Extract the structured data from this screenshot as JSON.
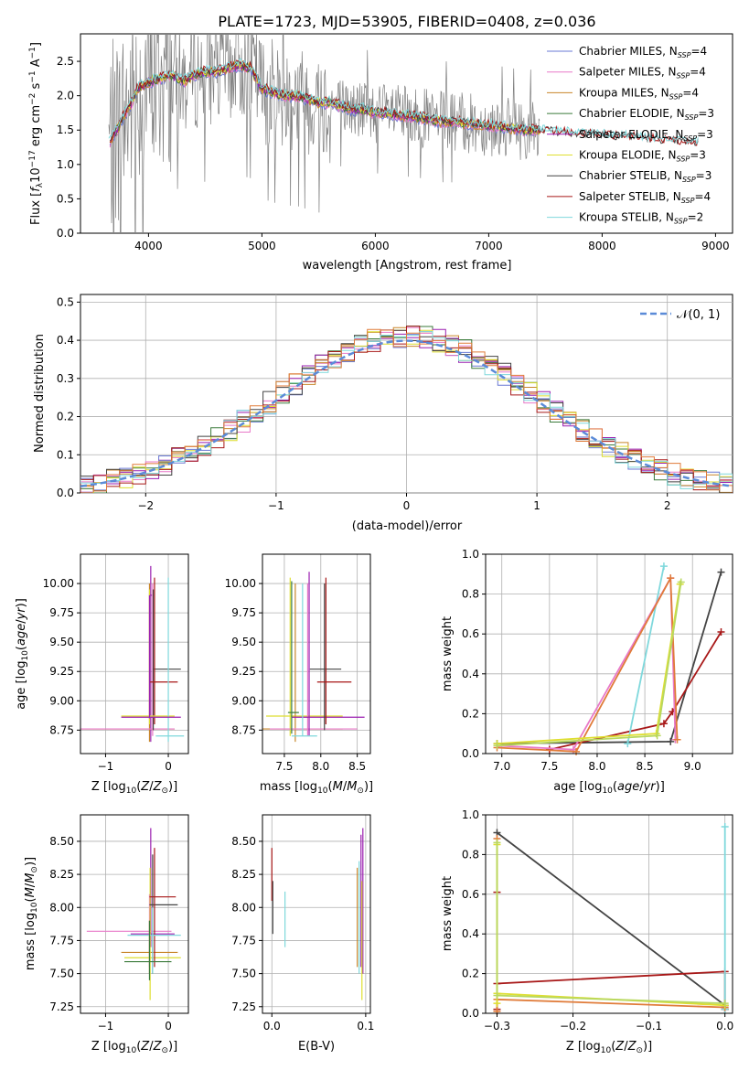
{
  "figure_title": "PLATE=1723, MJD=53905, FIBERID=0408, z=0.036",
  "colors": {
    "chabrier_miles": "#6a79d4",
    "salpeter_miles": "#e879c8",
    "kroupa_miles": "#c8862a",
    "chabrier_elodie": "#3a7a3a",
    "salpeter_elodie": "#9b1fb0",
    "kroupa_elodie": "#dede30",
    "chabrier_stelib": "#444444",
    "salpeter_stelib": "#a81818",
    "kroupa_stelib": "#7fd8dc",
    "observed": "#808080",
    "gaussian": "#5b8bd8",
    "orange_series": "#e07b39",
    "green_series": "#b8d860"
  },
  "chart_data": [
    {
      "id": "spectrum",
      "type": "line",
      "xlabel": "wavelength [Angstrom, rest frame]",
      "ylabel": "Flux [f_λ 10^-17 erg cm^-2 s^-1 A^-1]",
      "xlim": [
        3400,
        9150
      ],
      "ylim": [
        0,
        2.9
      ],
      "xticks": [
        "4000",
        "5000",
        "6000",
        "7000",
        "8000",
        "9000"
      ],
      "yticks": [
        "0.0",
        "0.5",
        "1.0",
        "1.5",
        "2.0",
        "2.5"
      ],
      "grid": false,
      "legend_position": "upper-right",
      "legend": [
        {
          "label": "Chabrier MILES, N_SSP=4",
          "color_key": "chabrier_miles"
        },
        {
          "label": "Salpeter MILES, N_SSP=4",
          "color_key": "salpeter_miles"
        },
        {
          "label": "Kroupa MILES, N_SSP=4",
          "color_key": "kroupa_miles"
        },
        {
          "label": "Chabrier ELODIE, N_SSP=3",
          "color_key": "chabrier_elodie"
        },
        {
          "label": "Salpeter ELODIE, N_SSP=3",
          "color_key": "salpeter_elodie"
        },
        {
          "label": "Kroupa ELODIE, N_SSP=3",
          "color_key": "kroupa_elodie"
        },
        {
          "label": "Chabrier STELIB, N_SSP=3",
          "color_key": "chabrier_stelib"
        },
        {
          "label": "Salpeter STELIB, N_SSP=4",
          "color_key": "salpeter_stelib"
        },
        {
          "label": "Kroupa STELIB, N_SSP=2",
          "color_key": "kroupa_stelib"
        }
      ],
      "model_continuum": {
        "x": [
          3650,
          3700,
          3750,
          3800,
          3850,
          3900,
          3950,
          4000,
          4100,
          4200,
          4300,
          4400,
          4500,
          4600,
          4700,
          4800,
          4900,
          5000,
          5100,
          5200,
          5300,
          5400,
          5500,
          5600,
          5700,
          5800,
          5900,
          6000,
          6100,
          6200,
          6300,
          6400,
          6500,
          6600,
          6700,
          6800,
          6900,
          7000,
          7100,
          7200,
          7300,
          7400,
          7500,
          7600,
          7700,
          7800,
          7900,
          8000,
          8100,
          8200,
          8300,
          8400,
          8500,
          8600,
          8700,
          8800,
          8850
        ],
        "y": [
          1.3,
          1.45,
          1.6,
          1.75,
          1.9,
          2.1,
          2.15,
          2.2,
          2.25,
          2.3,
          2.2,
          2.3,
          2.35,
          2.35,
          2.4,
          2.45,
          2.4,
          2.1,
          2.05,
          2.0,
          2.0,
          1.95,
          1.9,
          1.9,
          1.85,
          1.8,
          1.8,
          1.75,
          1.75,
          1.72,
          1.7,
          1.68,
          1.65,
          1.62,
          1.62,
          1.6,
          1.58,
          1.56,
          1.55,
          1.52,
          1.5,
          1.5,
          1.48,
          1.46,
          1.45,
          1.44,
          1.43,
          1.42,
          1.4,
          1.4,
          1.38,
          1.36,
          1.35,
          1.33,
          1.32,
          1.3,
          1.3
        ]
      },
      "observed_range": [
        3650,
        7450
      ]
    },
    {
      "id": "residuals",
      "type": "line",
      "xlabel": "(data-model)/error",
      "ylabel": "Normed distribution",
      "xlim": [
        -2.5,
        2.5
      ],
      "ylim": [
        0,
        0.52
      ],
      "xticks": [
        "−2",
        "−1",
        "0",
        "1",
        "2"
      ],
      "yticks": [
        "0.0",
        "0.1",
        "0.2",
        "0.3",
        "0.4",
        "0.5"
      ],
      "grid": true,
      "legend_position": "upper-right",
      "legend": [
        {
          "label": "𝒩(0, 1)",
          "color_key": "gaussian"
        }
      ],
      "gaussian": {
        "mean": 0,
        "sigma": 1
      },
      "histogram_bin_width": 0.1
    },
    {
      "id": "age-vs-Z",
      "type": "scatter",
      "xlabel": "Z [log10(Z/Z⊙)]",
      "ylabel": "age  [log10(age/yr)]",
      "xlim": [
        -1.4,
        0.32
      ],
      "ylim": [
        8.55,
        10.25
      ],
      "xticks": [
        "−1",
        "0"
      ],
      "yticks": [
        "8.75",
        "9.00",
        "9.25",
        "9.50",
        "9.75",
        "10.00"
      ],
      "grid": true
    },
    {
      "id": "age-vs-mass",
      "type": "scatter",
      "xlabel": "mass [log10(M/M⊙)]",
      "ylabel": "",
      "xlim": [
        7.2,
        8.68
      ],
      "ylim": [
        8.55,
        10.25
      ],
      "xticks": [
        "7.5",
        "8.0",
        "8.5"
      ],
      "yticks": [
        "8.75",
        "9.00",
        "9.25",
        "9.50",
        "9.75",
        "10.00"
      ],
      "grid": true
    },
    {
      "id": "weight-vs-age",
      "type": "line",
      "xlabel": "age  [log10(age/yr)]",
      "ylabel": "mass weight",
      "xlim": [
        6.83,
        9.42
      ],
      "ylim": [
        0,
        1.0
      ],
      "xticks": [
        "7.0",
        "7.5",
        "8.0",
        "8.5",
        "9.0"
      ],
      "yticks": [
        "0.0",
        "0.2",
        "0.4",
        "0.6",
        "0.8",
        "1.0"
      ],
      "grid": true,
      "series": [
        {
          "color_key": "chabrier_stelib",
          "x": [
            6.95,
            8.77,
            9.3
          ],
          "y": [
            0.05,
            0.06,
            0.91
          ]
        },
        {
          "color_key": "salpeter_stelib",
          "x": [
            7.5,
            8.7,
            8.79,
            9.3
          ],
          "y": [
            0.02,
            0.15,
            0.21,
            0.61
          ]
        },
        {
          "color_key": "kroupa_stelib",
          "x": [
            8.32,
            8.7
          ],
          "y": [
            0.05,
            0.94
          ]
        },
        {
          "color_key": "salpeter_miles",
          "x": [
            6.95,
            7.75,
            8.77,
            8.82
          ],
          "y": [
            0.04,
            0.02,
            0.88,
            0.07
          ]
        },
        {
          "color_key": "orange_series",
          "x": [
            6.95,
            7.78,
            8.77,
            8.84
          ],
          "y": [
            0.03,
            0.01,
            0.88,
            0.07
          ]
        },
        {
          "color_key": "kroupa_elodie",
          "x": [
            6.95,
            8.62,
            8.87
          ],
          "y": [
            0.05,
            0.1,
            0.85
          ]
        },
        {
          "color_key": "green_series",
          "x": [
            6.95,
            8.63,
            8.88
          ],
          "y": [
            0.04,
            0.09,
            0.86
          ]
        }
      ]
    },
    {
      "id": "mass-vs-Z",
      "type": "scatter",
      "xlabel": "Z [log10(Z/Z⊙)]",
      "ylabel": "mass [log10(M/M⊙)]",
      "xlim": [
        -1.4,
        0.32
      ],
      "ylim": [
        7.2,
        8.7
      ],
      "xticks": [
        "−1",
        "0"
      ],
      "yticks": [
        "7.25",
        "7.50",
        "7.75",
        "8.00",
        "8.25",
        "8.50"
      ],
      "grid": true
    },
    {
      "id": "mass-vs-ebv",
      "type": "scatter",
      "xlabel": "E(B-V)",
      "ylabel": "",
      "xlim": [
        -0.01,
        0.105
      ],
      "ylim": [
        7.2,
        8.7
      ],
      "xticks": [
        "0.0",
        "0.1"
      ],
      "yticks": [
        "7.25",
        "7.50",
        "7.75",
        "8.00",
        "8.25",
        "8.50"
      ],
      "grid": true
    },
    {
      "id": "weight-vs-Z",
      "type": "line",
      "xlabel": "Z [log10(Z/Z⊙)]",
      "ylabel": "mass weight",
      "xlim": [
        -0.315,
        0.01
      ],
      "ylim": [
        0,
        1.0
      ],
      "xticks": [
        "−0.3",
        "−0.2",
        "−0.1",
        "0.0"
      ],
      "yticks": [
        "0.0",
        "0.2",
        "0.4",
        "0.6",
        "0.8",
        "1.0"
      ],
      "grid": true,
      "series": [
        {
          "color_key": "chabrier_stelib",
          "x": [
            -0.3,
            0.0,
            0.0
          ],
          "y": [
            0.91,
            0.04,
            0.02
          ]
        },
        {
          "color_key": "salpeter_stelib",
          "x": [
            -0.3,
            -0.3,
            -0.3,
            0.0,
            0.0
          ],
          "y": [
            0.61,
            0.02,
            0.15,
            0.21,
            0.02
          ]
        },
        {
          "color_key": "kroupa_stelib",
          "x": [
            0.0,
            0.0
          ],
          "y": [
            0.94,
            0.02
          ]
        },
        {
          "color_key": "orange_series",
          "x": [
            -0.3,
            -0.3,
            -0.3,
            0.0
          ],
          "y": [
            0.88,
            0.01,
            0.07,
            0.03
          ]
        },
        {
          "color_key": "kroupa_elodie",
          "x": [
            -0.3,
            -0.3,
            -0.3,
            0.0
          ],
          "y": [
            0.85,
            0.05,
            0.1,
            0.04
          ]
        },
        {
          "color_key": "green_series",
          "x": [
            -0.3,
            -0.3,
            0.0
          ],
          "y": [
            0.86,
            0.09,
            0.05
          ]
        }
      ]
    }
  ]
}
